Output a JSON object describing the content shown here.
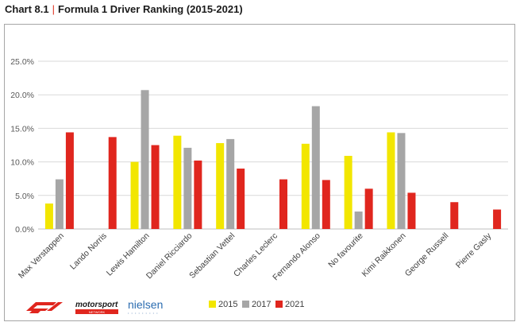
{
  "header": {
    "chart_number": "Chart 8.1",
    "title": "Formula 1 Driver Ranking (2015-2021)"
  },
  "logos": {
    "motorsport_text": "motorsport",
    "motorsport_sub": "NETWORK",
    "nielsen_text": "nielsen"
  },
  "colors": {
    "2015": "#f2e600",
    "2017": "#a6a6a6",
    "2021": "#e0261e",
    "gridline": "#d9d9d9"
  },
  "chart_data": {
    "type": "bar",
    "title": "Formula 1 Driver Ranking (2015-2021)",
    "xlabel": "",
    "ylabel": "",
    "ylim": [
      0,
      25
    ],
    "yticks": [
      0,
      5,
      10,
      15,
      20,
      25
    ],
    "ytick_labels": [
      "0.0%",
      "5.0%",
      "10.0%",
      "15.0%",
      "20.0%",
      "25.0%"
    ],
    "grid": true,
    "legend_position": "bottom",
    "categories": [
      "Max Verstappen",
      "Lando Norris",
      "Lewis Hamilton",
      "Daniel Ricciardo",
      "Sebastian Vettel",
      "Charles Leclerc",
      "Fernando Alonso",
      "No favourite",
      "Kimi Raikkonen",
      "George Russell",
      "Pierre Gasly"
    ],
    "series": [
      {
        "name": "2015",
        "values": [
          3.8,
          null,
          10.0,
          13.9,
          12.8,
          null,
          12.7,
          10.9,
          14.4,
          null,
          null
        ]
      },
      {
        "name": "2017",
        "values": [
          7.4,
          null,
          20.7,
          12.1,
          13.4,
          null,
          18.3,
          2.6,
          14.3,
          null,
          null
        ]
      },
      {
        "name": "2021",
        "values": [
          14.4,
          13.7,
          12.5,
          10.2,
          9.0,
          7.4,
          7.3,
          6.0,
          5.4,
          4.0,
          2.9
        ]
      }
    ]
  }
}
